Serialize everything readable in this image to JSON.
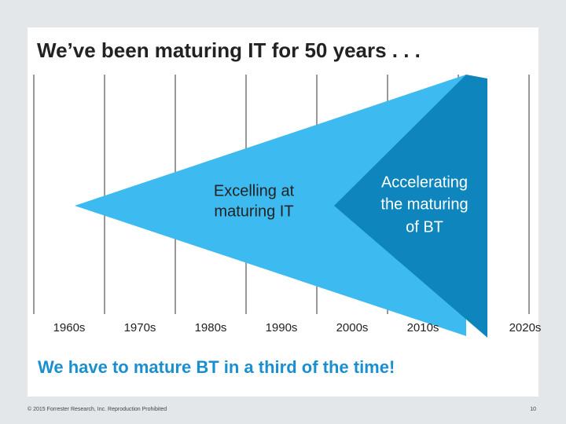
{
  "title": "We’ve been maturing IT for 50 years . . .",
  "timeline": {
    "decades": [
      "1960s",
      "1970s",
      "1980s",
      "1990s",
      "2000s",
      "2010s",
      "2020s"
    ]
  },
  "it_label": {
    "lines": [
      "Excelling at",
      "maturing IT"
    ]
  },
  "bt_label": {
    "lines": [
      "Accelerating",
      "the maturing",
      "of BT"
    ]
  },
  "message": "We have to mature BT in a third of the time!",
  "footer": {
    "copyright": "© 2015 Forrester Research, Inc. Reproduction Prohibited",
    "page": "10"
  }
}
